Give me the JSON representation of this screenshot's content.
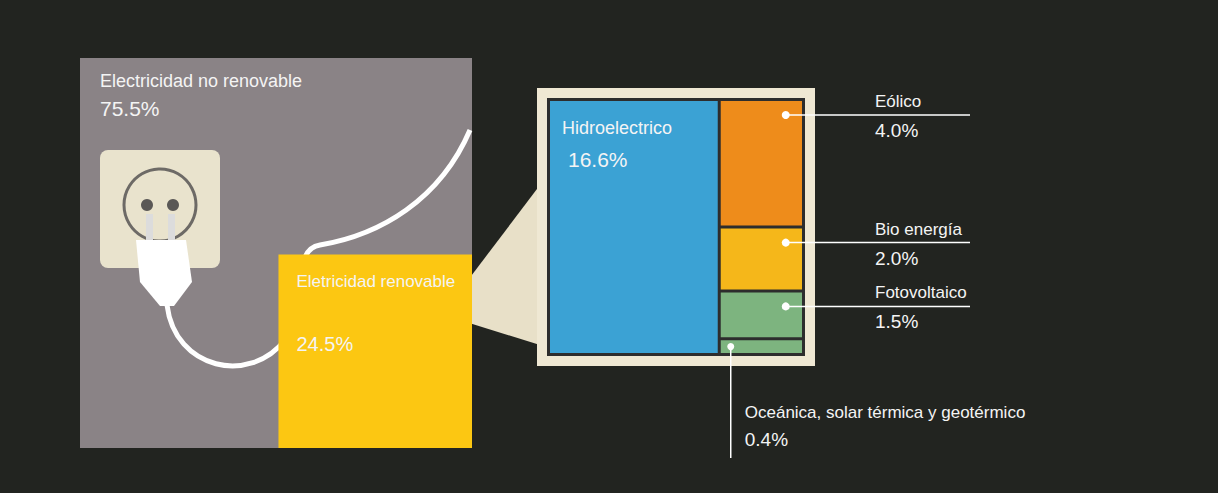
{
  "chart_data": [
    {
      "type": "inset",
      "categories": [
        "Electricidad no renovable",
        "Eletricidad renovable"
      ],
      "values": [
        75.5,
        24.5
      ],
      "value_labels": [
        "75.5%",
        "24.5%"
      ],
      "colors": [
        "#8a8386",
        "#fcc712"
      ],
      "data_labels": true
    },
    {
      "type": "treemap",
      "categories": [
        "Hidroelectrico",
        "Eólico",
        "Bio energía",
        "Fotovoltaico",
        "Oceánica, solar térmica y geotérmico"
      ],
      "values": [
        16.6,
        4.0,
        2.0,
        1.5,
        0.4
      ],
      "value_labels": [
        "16.6%",
        "4.0%",
        "2.0%",
        "1.5%",
        "0.4%"
      ],
      "colors": [
        "#3ba2d4",
        "#ee8c1b",
        "#f5b71a",
        "#7db47f",
        "#7db47f"
      ],
      "data_labels": true
    }
  ]
}
